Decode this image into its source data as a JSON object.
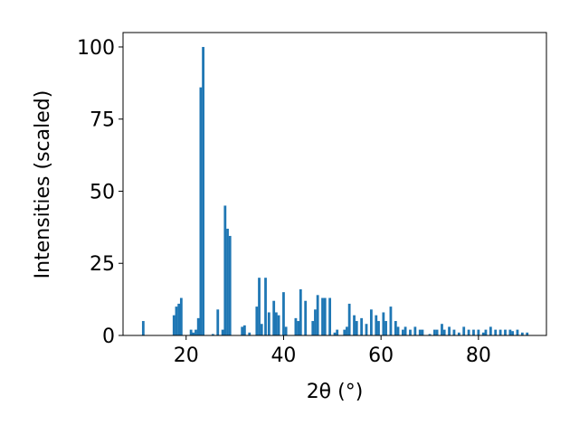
{
  "chart_data": {
    "type": "bar",
    "xlabel": "2θ (°)",
    "ylabel": "Intensities (scaled)",
    "color": "#1f77b4",
    "x": [
      11.2,
      17.5,
      18,
      18.5,
      19,
      21,
      21.5,
      22,
      22.5,
      23,
      23.5,
      25.5,
      26.5,
      27.5,
      28,
      28.5,
      29,
      31.5,
      32,
      33,
      34.5,
      35,
      35.5,
      36.3,
      37,
      38,
      38.5,
      39,
      40,
      40.5,
      42.5,
      43,
      43.5,
      44.5,
      46,
      46.5,
      47,
      48,
      48.5,
      49.5,
      50.5,
      51,
      52.5,
      53,
      53.5,
      54.5,
      55,
      56,
      57,
      58,
      59,
      59.5,
      60.5,
      61,
      62,
      63,
      63.5,
      64.5,
      65,
      66,
      67,
      68,
      68.5,
      70,
      71,
      71.5,
      72.5,
      73,
      74,
      75,
      76,
      77,
      78,
      79,
      80,
      81,
      81.5,
      82.5,
      83.5,
      84.5,
      85.5,
      86.5,
      87,
      88,
      89,
      90
    ],
    "values": [
      5,
      7,
      10,
      11,
      13,
      2,
      1,
      2,
      6,
      86,
      100,
      0.5,
      9,
      2,
      45,
      37,
      34.5,
      3,
      3.5,
      1,
      10,
      20,
      4,
      20,
      8,
      12,
      8,
      7,
      15,
      3,
      6,
      5,
      16,
      12,
      5,
      9,
      14,
      13,
      13,
      13,
      1,
      2,
      2,
      3,
      11,
      7,
      5,
      6,
      4,
      9,
      7,
      5,
      8,
      5,
      10,
      5,
      3,
      2,
      3,
      2,
      3,
      2,
      2,
      0.5,
      2,
      2,
      4,
      2,
      3,
      2,
      1,
      3,
      2,
      2,
      2,
      1,
      2,
      3,
      2,
      2,
      2,
      2,
      1.5,
      2,
      1,
      1
    ],
    "xlim": [
      7.05,
      93.95
    ],
    "ylim": [
      0,
      105
    ],
    "xticks": [
      20,
      40,
      60,
      80
    ],
    "yticks": [
      0,
      25,
      50,
      75,
      100
    ]
  }
}
